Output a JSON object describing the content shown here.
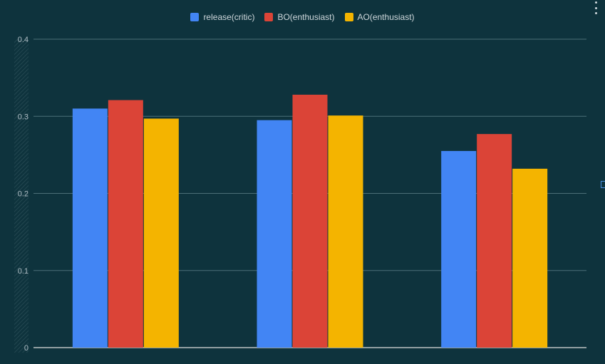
{
  "chart_data": {
    "type": "bar",
    "categories": [
      "",
      "",
      ""
    ],
    "series": [
      {
        "name": "release(critic)",
        "color": "#4285f4",
        "values": [
          0.31,
          0.295,
          0.255
        ]
      },
      {
        "name": "BO(enthusiast)",
        "color": "#db4437",
        "values": [
          0.321,
          0.328,
          0.277
        ]
      },
      {
        "name": "AO(enthusiast)",
        "color": "#f4b400",
        "values": [
          0.297,
          0.301,
          0.232
        ]
      }
    ],
    "ylim": [
      0,
      0.4
    ],
    "yticks": [
      "0",
      "0.1",
      "0.2",
      "0.3",
      "0.4"
    ],
    "ytick_values": [
      0,
      0.1,
      0.2,
      0.3,
      0.4
    ],
    "grid": true,
    "legend_position": "top-center"
  },
  "icons": {
    "menu": "more-vertical-icon"
  }
}
